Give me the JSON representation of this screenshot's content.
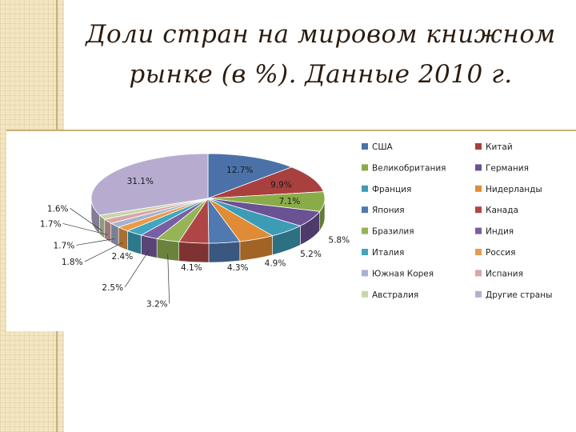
{
  "title_lines": [
    "Доли стран на мировом книжном",
    "рынке (в %). Данные 2010 г."
  ],
  "chart_data": {
    "type": "pie",
    "title": "Доли стран на мировом книжном рынке (в %). Данные 2010 г.",
    "legend_position": "right",
    "slices": [
      {
        "name": "США",
        "value": 12.7,
        "label": "12.7%",
        "color": "#4a72a8"
      },
      {
        "name": "Китай",
        "value": 9.9,
        "label": "9.9%",
        "color": "#a84040"
      },
      {
        "name": "Великобритания",
        "value": 7.1,
        "label": "7.1%",
        "color": "#8aac48"
      },
      {
        "name": "Германия",
        "value": 5.8,
        "label": "5.8%",
        "color": "#6a5294"
      },
      {
        "name": "Франция",
        "value": 5.2,
        "label": "5.2%",
        "color": "#3d9cb5"
      },
      {
        "name": "Нидерланды",
        "value": 4.9,
        "label": "4.9%",
        "color": "#e08b35"
      },
      {
        "name": "Япония",
        "value": 4.3,
        "label": "4.3%",
        "color": "#4f79b0"
      },
      {
        "name": "Канада",
        "value": 4.1,
        "label": "4.1%",
        "color": "#b04545"
      },
      {
        "name": "Бразилия",
        "value": 3.2,
        "label": "3.2%",
        "color": "#94b455"
      },
      {
        "name": "Индия",
        "value": 2.5,
        "label": "2.5%",
        "color": "#7a5ea3"
      },
      {
        "name": "Италия",
        "value": 2.4,
        "label": "2.4%",
        "color": "#3fa7bf"
      },
      {
        "name": "Россия",
        "value": 1.8,
        "label": "1.8%",
        "color": "#eb9a4a"
      },
      {
        "name": "Южная Корея",
        "value": 1.7,
        "label": "1.7%",
        "color": "#a5b3cf"
      },
      {
        "name": "Испания",
        "value": 1.7,
        "label": "1.7%",
        "color": "#d9a7a7"
      },
      {
        "name": "Австралия",
        "value": 1.6,
        "label": "1.6%",
        "color": "#c7d6a8"
      },
      {
        "name": "Другие страны",
        "value": 31.1,
        "label": "31.1%",
        "color": "#b7acd0"
      }
    ]
  }
}
